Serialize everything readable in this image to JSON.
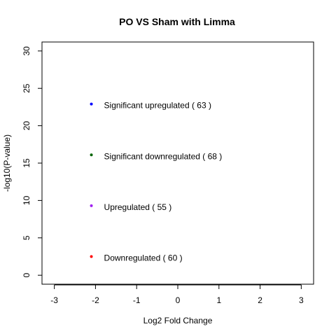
{
  "chart_data": {
    "type": "scatter",
    "title": "PO VS Sham with Limma",
    "xlabel": "Log2 Fold Change",
    "ylabel": "-log10(P-value)",
    "xlim": [
      -3.3,
      3.3
    ],
    "ylim": [
      -1.2,
      31.2
    ],
    "x_ticks": [
      -3,
      -2,
      -1,
      0,
      1,
      2,
      3
    ],
    "y_ticks": [
      0,
      5,
      10,
      15,
      20,
      25,
      30
    ],
    "grid": false,
    "legend_placement": "left",
    "legend": [
      {
        "label": "Significant upregulated ( 63 )",
        "color": "#0000ff",
        "x": -2.1,
        "y": 22.9
      },
      {
        "label": "Significant downregulated ( 68 )",
        "color": "#006400",
        "x": -2.1,
        "y": 16.1
      },
      {
        "label": "Upregulated ( 55 )",
        "color": "#a020f0",
        "x": -2.1,
        "y": 9.3
      },
      {
        "label": "Downregulated ( 60 )",
        "color": "#ff0000",
        "x": -2.1,
        "y": 2.5
      }
    ]
  }
}
